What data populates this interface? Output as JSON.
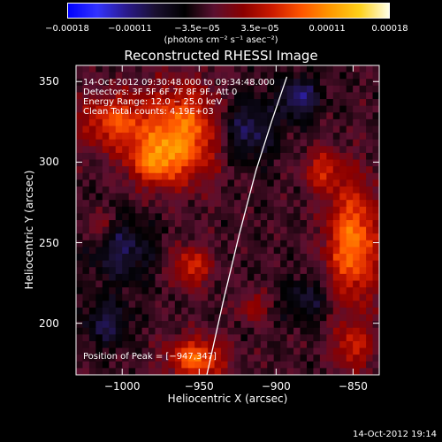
{
  "chart_data": {
    "type": "heatmap",
    "title": "Reconstructed RHESSI Image",
    "xlabel": "Heliocentric X (arcsec)",
    "ylabel": "Heliocentric Y (arcsec)",
    "xlim": [
      -1030,
      -833
    ],
    "ylim": [
      168,
      360
    ],
    "x_ticks": [
      {
        "value": -1000,
        "label": "−1000"
      },
      {
        "value": -950,
        "label": "−950"
      },
      {
        "value": -900,
        "label": "−900"
      },
      {
        "value": -850,
        "label": "−850"
      }
    ],
    "y_ticks": [
      {
        "value": 200,
        "label": "200"
      },
      {
        "value": 250,
        "label": "250"
      },
      {
        "value": 300,
        "label": "300"
      },
      {
        "value": 350,
        "label": "350"
      }
    ],
    "colorbar": {
      "range": [
        -0.00018,
        0.00018
      ],
      "ticks": [
        {
          "value": -0.00018,
          "label": "−0.00018"
        },
        {
          "value": -0.00011,
          "label": "−0.00011"
        },
        {
          "value": -3.5e-05,
          "label": "−3.5e−05"
        },
        {
          "value": 3.5e-05,
          "label": "3.5e−05"
        },
        {
          "value": 0.00011,
          "label": "0.00011"
        },
        {
          "value": 0.00018,
          "label": "0.00018"
        }
      ],
      "units": "(photons cm⁻² s⁻¹ asec⁻²)",
      "colors": [
        "#0000ff",
        "#3333ff",
        "#2a1a8c",
        "#1a1030",
        "#000000",
        "#5a1030",
        "#8a0000",
        "#cc1a00",
        "#ff5500",
        "#ff9900",
        "#ffd11a",
        "#ffffe6"
      ]
    },
    "sources": [
      {
        "x": -1005,
        "y": 325,
        "sx": 16,
        "sy": 12,
        "amp": 9.5e-05
      },
      {
        "x": -960,
        "y": 318,
        "sx": 18,
        "sy": 20,
        "amp": 0.000125
      },
      {
        "x": -980,
        "y": 300,
        "sx": 12,
        "sy": 10,
        "amp": 9e-05
      },
      {
        "x": -955,
        "y": 235,
        "sx": 9,
        "sy": 9,
        "amp": 8e-05
      },
      {
        "x": -952,
        "y": 178,
        "sx": 13,
        "sy": 9,
        "amp": 0.000115
      },
      {
        "x": -850,
        "y": 250,
        "sx": 12,
        "sy": 26,
        "amp": 0.000125
      },
      {
        "x": -870,
        "y": 295,
        "sx": 9,
        "sy": 9,
        "amp": 7e-05
      },
      {
        "x": -850,
        "y": 185,
        "sx": 9,
        "sy": 10,
        "amp": 7e-05
      },
      {
        "x": -915,
        "y": 210,
        "sx": 6,
        "sy": 6,
        "amp": 6e-05
      },
      {
        "x": -1015,
        "y": 260,
        "sx": 7,
        "sy": 6,
        "amp": 5e-05
      }
    ],
    "negative_regions": [
      {
        "x": -920,
        "y": 320,
        "sx": 14,
        "sy": 14,
        "amp": -7e-05
      },
      {
        "x": -1000,
        "y": 245,
        "sx": 14,
        "sy": 14,
        "amp": -6e-05
      },
      {
        "x": -885,
        "y": 340,
        "sx": 9,
        "sy": 9,
        "amp": -8e-05
      },
      {
        "x": -1010,
        "y": 200,
        "sx": 10,
        "sy": 10,
        "amp": -6e-05
      },
      {
        "x": -880,
        "y": 215,
        "sx": 10,
        "sy": 10,
        "amp": -5e-05
      }
    ],
    "grid": false,
    "limb_color": "#ffffff",
    "limb_points": [
      {
        "x": -945,
        "y": 168
      },
      {
        "x": -934,
        "y": 215
      },
      {
        "x": -924,
        "y": 255
      },
      {
        "x": -913,
        "y": 295
      },
      {
        "x": -903,
        "y": 325
      },
      {
        "x": -893,
        "y": 353
      }
    ],
    "peak_marker": {
      "x": -947,
      "y": 347
    }
  },
  "annotations": {
    "time": "14-Oct-2012 09:30:48.000 to 09:34:48.000",
    "detectors": "Detectors: 3F 5F 6F 7F 8F 9F, Att 0",
    "energy": "Energy Range: 12.0 − 25.0 keV",
    "clean": "Clean     Total counts: 4.19E+03",
    "peak": "Position of Peak = [−947,347]"
  },
  "timestamp": "14-Oct-2012 19:14"
}
